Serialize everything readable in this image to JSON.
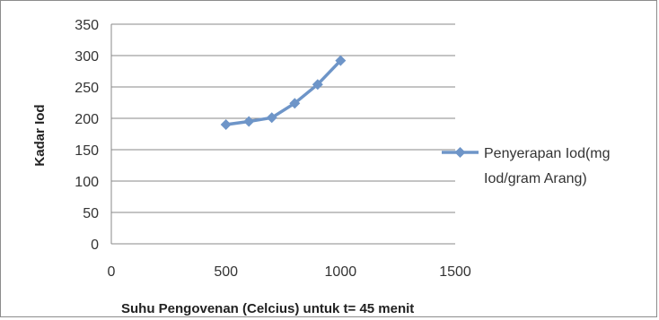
{
  "chart_data": {
    "type": "line",
    "xlabel": "Suhu Pengovenan (Celcius) untuk t= 45 menit",
    "ylabel": "Kadar Iod",
    "xlim": [
      0,
      1500
    ],
    "ylim": [
      0,
      350
    ],
    "x_ticks": [
      "0",
      "500",
      "1000",
      "1500"
    ],
    "y_ticks": [
      "0",
      "50",
      "100",
      "150",
      "200",
      "250",
      "300",
      "350"
    ],
    "grid": "horizontal",
    "legend_position": "right",
    "series": [
      {
        "name": "Penyerapan Iod(mg Iod/gram Arang)",
        "legend_lines": [
          "Penyerapan Iod(mg",
          "Iod/gram Arang)"
        ],
        "color": "#6e95c8",
        "marker": "diamond",
        "points": [
          {
            "x": 500,
            "y": 190
          },
          {
            "x": 600,
            "y": 195
          },
          {
            "x": 700,
            "y": 201
          },
          {
            "x": 800,
            "y": 224
          },
          {
            "x": 900,
            "y": 254
          },
          {
            "x": 1000,
            "y": 292
          }
        ]
      }
    ]
  }
}
